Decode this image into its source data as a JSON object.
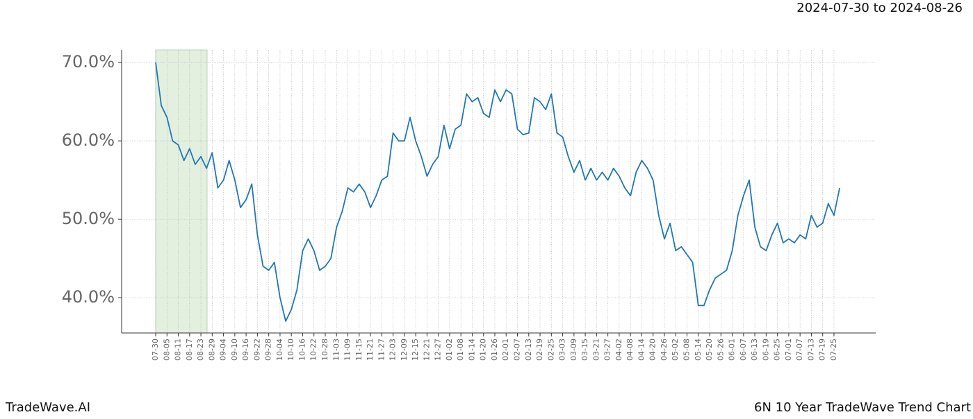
{
  "chart_data": {
    "type": "line",
    "title": "6N 10 Year TradeWave Trend Chart",
    "subtitle": "2024-07-30 to 2024-08-26",
    "source": "TradeWave.AI",
    "categories": [
      "07-30",
      null,
      "08-05",
      null,
      "08-11",
      null,
      "08-17",
      null,
      "08-23",
      null,
      "08-29",
      null,
      "09-04",
      null,
      "09-10",
      null,
      "09-16",
      null,
      "09-22",
      null,
      "09-28",
      null,
      "10-04",
      null,
      "10-10",
      null,
      "10-16",
      null,
      "10-22",
      null,
      "10-28",
      null,
      "11-03",
      null,
      "11-09",
      null,
      "11-15",
      null,
      "11-21",
      null,
      "11-27",
      null,
      "12-03",
      null,
      "12-09",
      null,
      "12-15",
      null,
      "12-21",
      null,
      "12-27",
      null,
      "01-02",
      null,
      "01-08",
      null,
      "01-14",
      null,
      "01-20",
      null,
      "01-26",
      null,
      "02-01",
      null,
      "02-07",
      null,
      "02-13",
      null,
      "02-19",
      null,
      "02-25",
      null,
      "03-03",
      null,
      "03-09",
      null,
      "03-15",
      null,
      "03-21",
      null,
      "03-27",
      null,
      "04-02",
      null,
      "04-08",
      null,
      "04-14",
      null,
      "04-20",
      null,
      "04-26",
      null,
      "05-02",
      null,
      "05-08",
      null,
      "05-14",
      null,
      "05-20",
      null,
      "05-26",
      null,
      "06-01",
      null,
      "06-07",
      null,
      "06-13",
      null,
      "06-19",
      null,
      "06-25",
      null,
      "07-01",
      null,
      "07-07",
      null,
      "07-13",
      null,
      "07-19",
      null,
      "07-25",
      null
    ],
    "series": [
      {
        "name": "6N",
        "color": "#1f77b4",
        "values": [
          70,
          64.5,
          63,
          60,
          59.5,
          57.5,
          59,
          57,
          58,
          56.5,
          58.5,
          54,
          55,
          57.5,
          55,
          51.5,
          52.5,
          54.5,
          48,
          44,
          43.5,
          44.5,
          40,
          37,
          38.5,
          41,
          46,
          47.5,
          46,
          43.5,
          44,
          45,
          49,
          51,
          54,
          53.5,
          54.5,
          53.5,
          51.5,
          53,
          55,
          55.5,
          61,
          60,
          60,
          63,
          60,
          58,
          55.5,
          57,
          58,
          62,
          59,
          61.5,
          62,
          66,
          65,
          65.5,
          63.5,
          63,
          66.5,
          65,
          66.5,
          66,
          61.5,
          60.8,
          61,
          65.5,
          65,
          64,
          66,
          61,
          60.5,
          58,
          56,
          57.5,
          55,
          56.5,
          55,
          56,
          55,
          56.5,
          55.5,
          54,
          53,
          56,
          57.5,
          56.5,
          55,
          50.5,
          47.5,
          49.5,
          46,
          46.5,
          45.5,
          44.5,
          39,
          39,
          41,
          42.5,
          43,
          43.5,
          46,
          50.5,
          53,
          55,
          49,
          46.5,
          46,
          48,
          49.5,
          47,
          47.5,
          47,
          48,
          47.5,
          50.5,
          49,
          49.5,
          52,
          50.5,
          54
        ]
      }
    ],
    "ylim": [
      35.5,
      71.6
    ],
    "yticks": [
      {
        "value": 40,
        "label": "40.0%"
      },
      {
        "value": 50,
        "label": "50.0%"
      },
      {
        "value": 60,
        "label": "60.0%"
      },
      {
        "value": 70,
        "label": "70.0%"
      }
    ],
    "grid": true
  }
}
